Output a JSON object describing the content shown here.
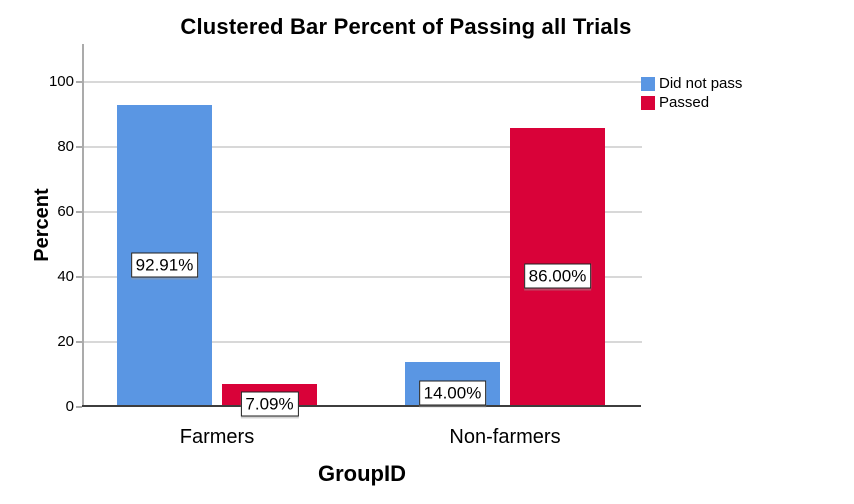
{
  "title": "Clustered Bar Percent of Passing all Trials",
  "chart_data": {
    "type": "bar",
    "title": "Clustered Bar Percent of Passing all Trials",
    "xlabel": "GroupID",
    "ylabel": "Percent",
    "categories": [
      "Farmers",
      "Non-farmers"
    ],
    "series": [
      {
        "name": "Did not pass",
        "color": "#5A96E3",
        "values": [
          92.91,
          14.0
        ],
        "labels": [
          "92.91%",
          "14.00%"
        ]
      },
      {
        "name": "Passed",
        "color": "#D90239",
        "values": [
          7.09,
          86.0
        ],
        "labels": [
          "7.09%",
          "86.00%"
        ]
      }
    ],
    "ylim": [
      0,
      100
    ],
    "yticks": [
      0,
      20,
      40,
      60,
      80,
      100
    ],
    "grid": true,
    "legend_position": "top-right",
    "axis_colors": {
      "x_axis_line": "#3d3d3d",
      "y_axis_line": "#ababab",
      "gridline": "#d8d8d8"
    }
  }
}
